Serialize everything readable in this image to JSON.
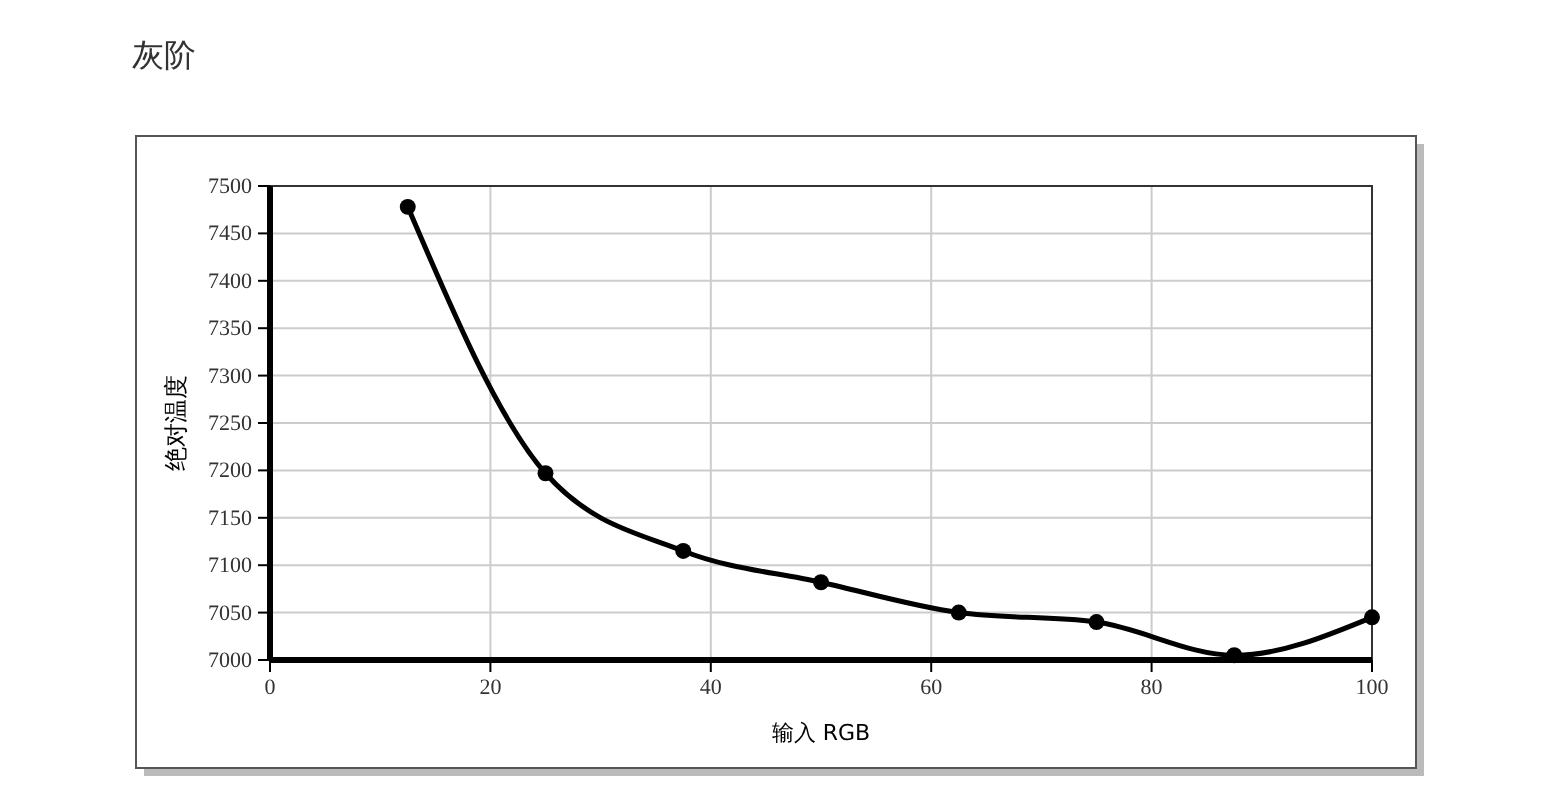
{
  "chart_data": {
    "type": "line",
    "title": "灰阶",
    "xlabel": "输入 RGB",
    "ylabel": "绝对温度",
    "x": [
      12.5,
      25,
      37.5,
      50,
      62.5,
      75,
      87.5,
      100
    ],
    "series": [
      {
        "color": "#000000",
        "values": [
          7478,
          7197,
          7115,
          7082,
          7050,
          7040,
          7005,
          7045
        ]
      }
    ],
    "xlim": [
      0,
      100
    ],
    "xticks": [
      0,
      20,
      40,
      60,
      80,
      100
    ],
    "ylim": [
      7000,
      7500
    ],
    "yticks": [
      7000,
      7050,
      7100,
      7150,
      7200,
      7250,
      7300,
      7350,
      7400,
      7450,
      7500
    ],
    "grid": true,
    "marker": "circle",
    "line_style": "solid"
  }
}
